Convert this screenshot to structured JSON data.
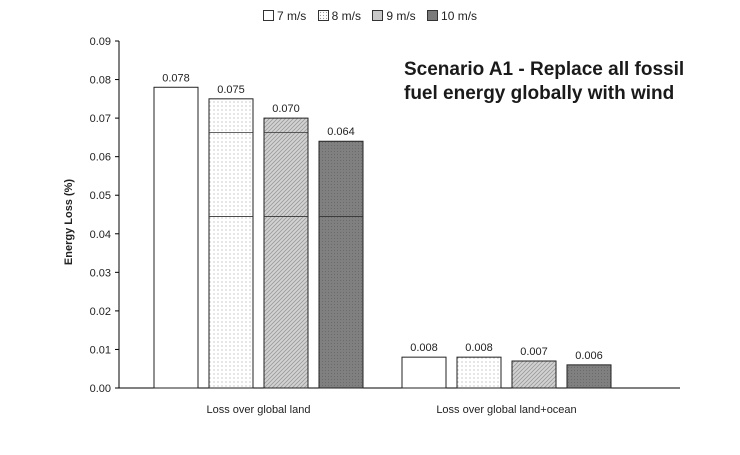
{
  "chart_data": {
    "type": "bar",
    "title": "",
    "xlabel": "",
    "ylabel": "Energy Loss (%)",
    "ylim": [
      0,
      0.09
    ],
    "yticks": [
      "0.00",
      "0.01",
      "0.02",
      "0.03",
      "0.04",
      "0.05",
      "0.06",
      "0.07",
      "0.08",
      "0.09"
    ],
    "categories": [
      "Loss over global land",
      "Loss over global land+ocean"
    ],
    "series": [
      {
        "name": "7 m/s",
        "values": [
          0.078,
          0.008
        ],
        "labels": [
          "0.078",
          "0.008"
        ]
      },
      {
        "name": "8 m/s",
        "values": [
          0.075,
          0.008
        ],
        "labels": [
          "0.075",
          "0.008"
        ]
      },
      {
        "name": "9 m/s",
        "values": [
          0.07,
          0.007
        ],
        "labels": [
          "0.070",
          "0.007"
        ]
      },
      {
        "name": "10 m/s",
        "values": [
          0.064,
          0.006
        ],
        "labels": [
          "0.064",
          "0.006"
        ]
      }
    ],
    "reference_lines": [
      0.0445,
      0.0663
    ],
    "annotation": "Scenario A1 - Replace all fossil fuel energy globally with wind",
    "legend_position": "top",
    "grid": false
  }
}
